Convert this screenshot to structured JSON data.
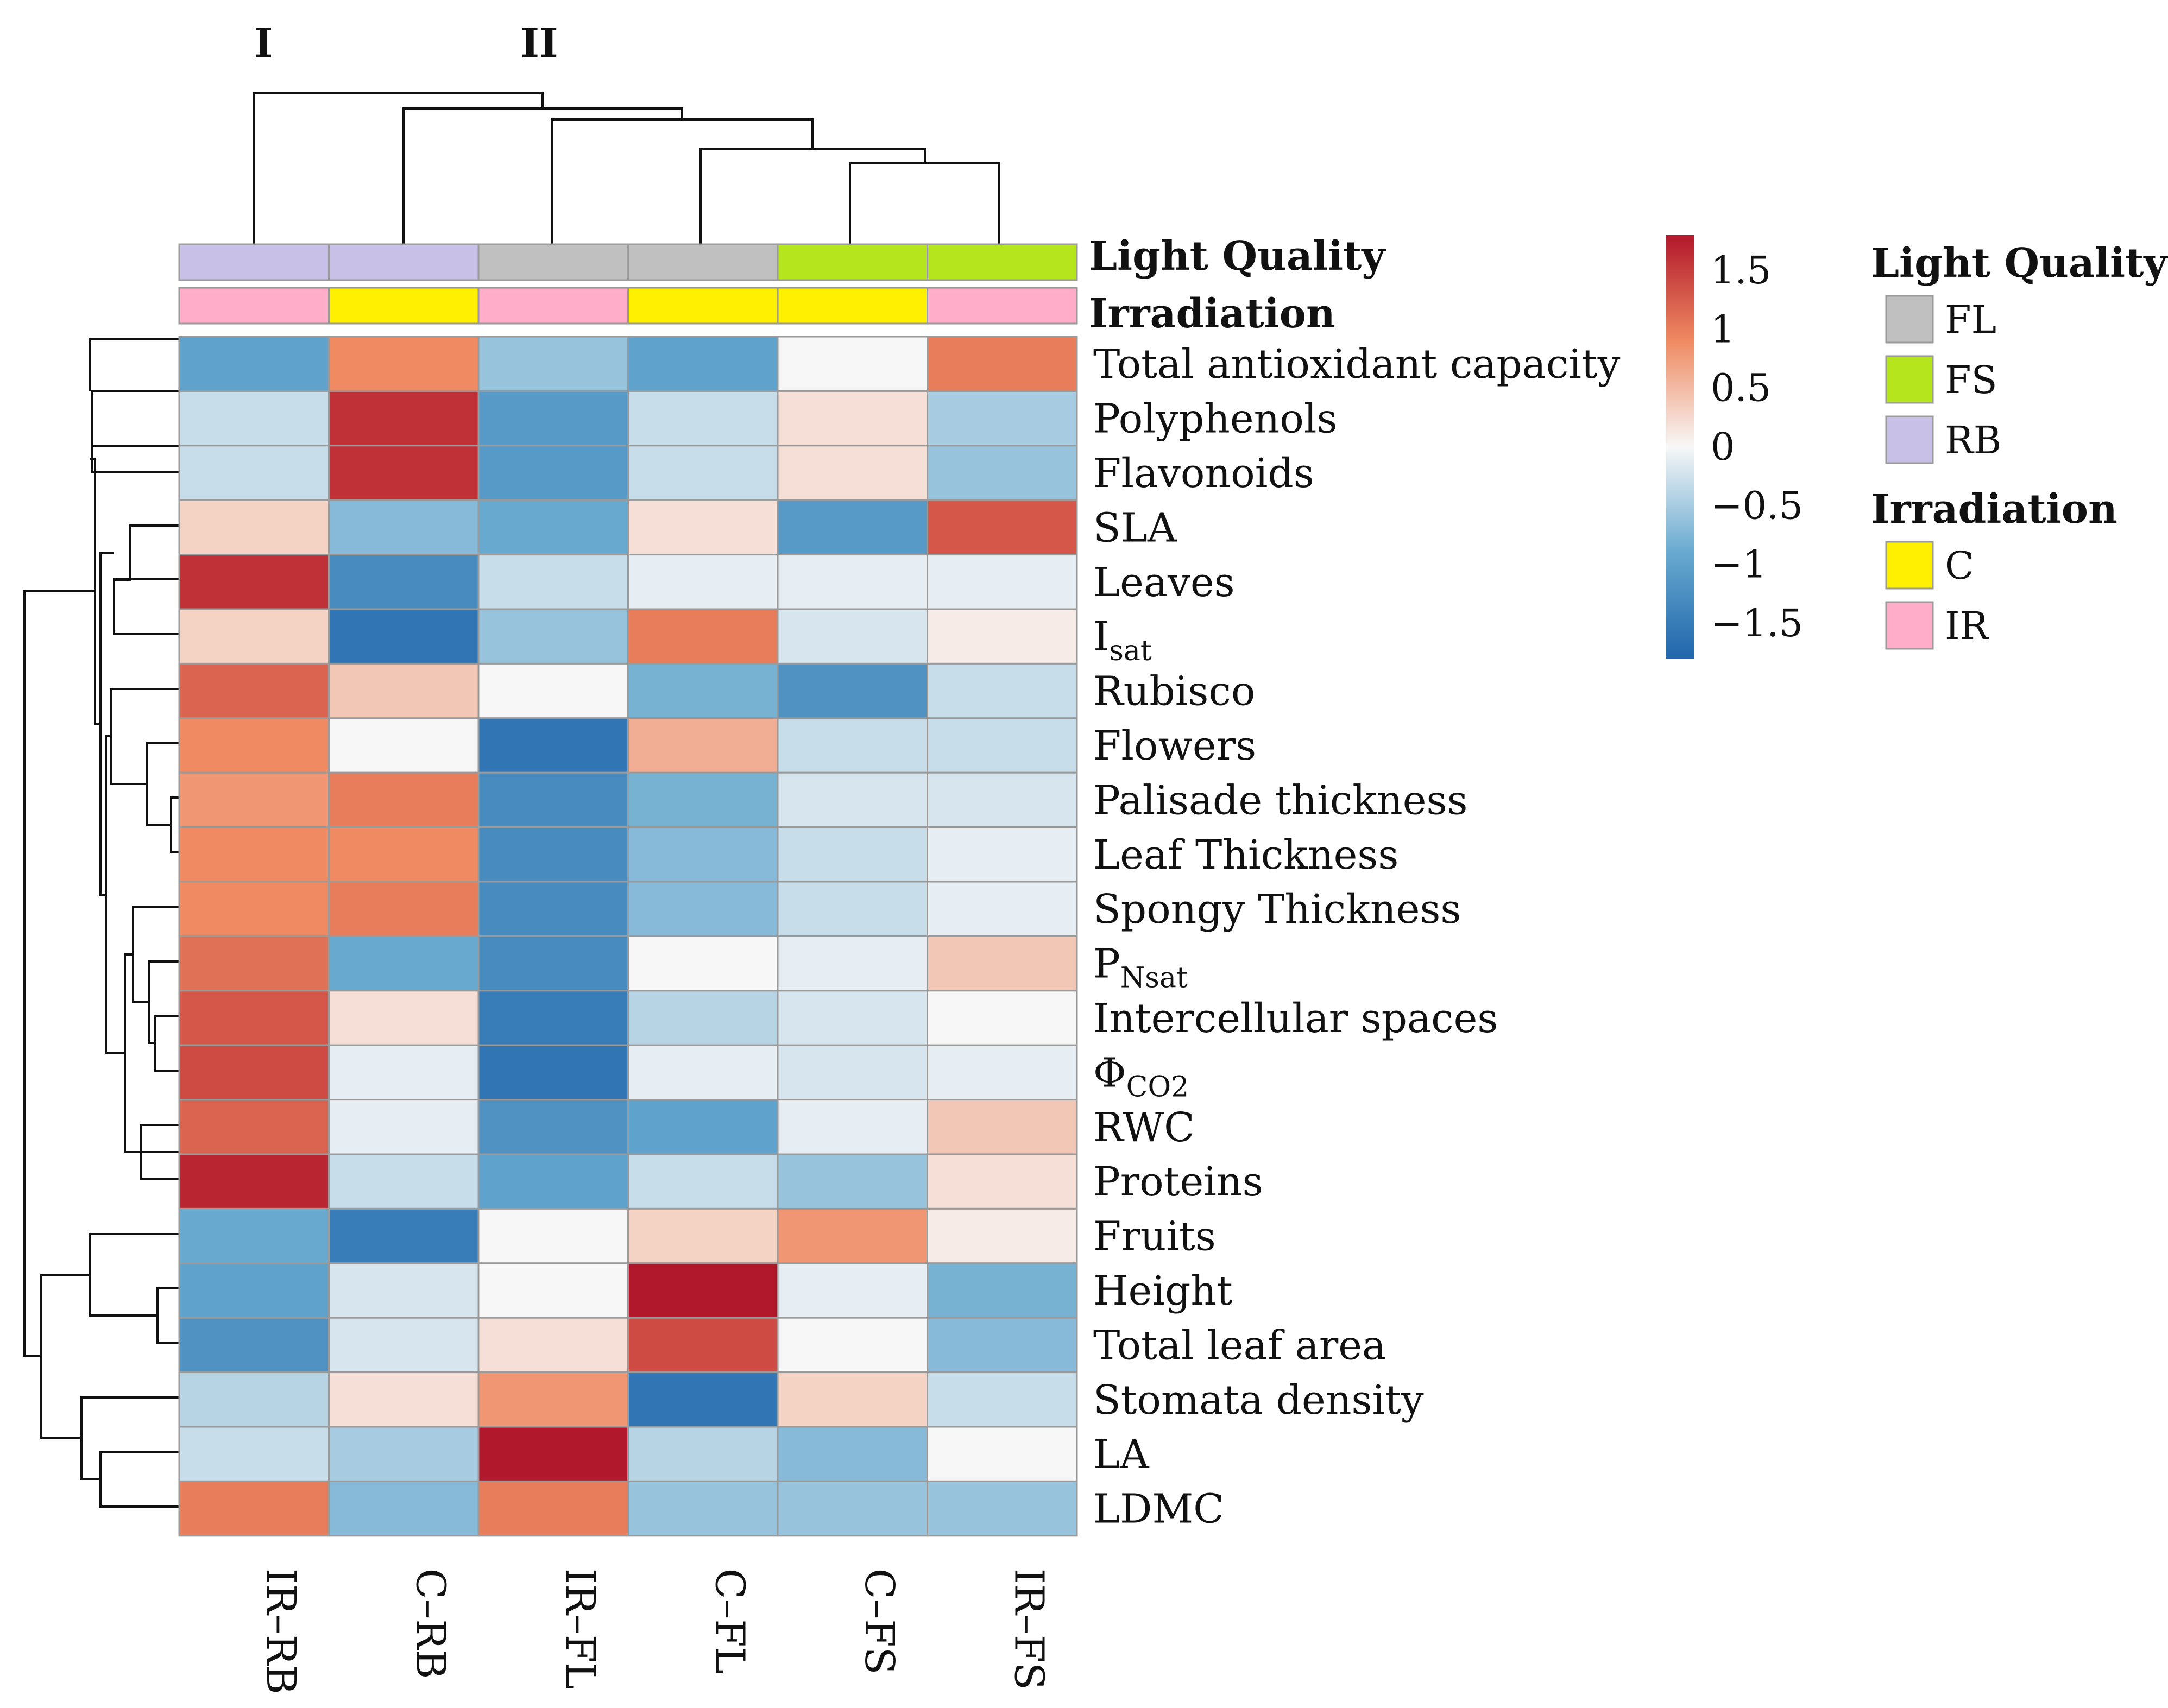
{
  "chart_data": {
    "type": "heatmap",
    "title": "",
    "columns": [
      "IR–RB",
      "C–RB",
      "IR–FL",
      "C–FL",
      "C–FS",
      "IR–FS"
    ],
    "rows": [
      {
        "label": "Total antioxidant capacity"
      },
      {
        "label": "Polyphenols"
      },
      {
        "label": "Flavonoids"
      },
      {
        "label": "SLA"
      },
      {
        "label": "Leaves"
      },
      {
        "label": "I",
        "sub": "sat"
      },
      {
        "label": "Rubisco"
      },
      {
        "label": "Flowers"
      },
      {
        "label": "Palisade thickness"
      },
      {
        "label": "Leaf Thickness"
      },
      {
        "label": "Spongy Thickness"
      },
      {
        "label": "P",
        "sub": "Nsat"
      },
      {
        "label": "Intercellular spaces"
      },
      {
        "label": "Φ",
        "sub": "CO2"
      },
      {
        "label": "RWC"
      },
      {
        "label": "Proteins"
      },
      {
        "label": "Fruits"
      },
      {
        "label": "Height"
      },
      {
        "label": "Total leaf area"
      },
      {
        "label": "Stomata density"
      },
      {
        "label": "LA"
      },
      {
        "label": "LDMC"
      }
    ],
    "values": [
      [
        -1.0,
        0.9,
        -0.6,
        -1.0,
        0.0,
        1.0
      ],
      [
        -0.3,
        1.6,
        -1.1,
        -0.3,
        0.2,
        -0.5
      ],
      [
        -0.3,
        1.6,
        -1.1,
        -0.3,
        0.2,
        -0.6
      ],
      [
        0.3,
        -0.7,
        -0.9,
        0.2,
        -1.1,
        1.3
      ],
      [
        1.6,
        -1.3,
        -0.3,
        -0.1,
        -0.1,
        -0.1
      ],
      [
        0.3,
        -1.6,
        -0.6,
        1.0,
        -0.2,
        0.1
      ],
      [
        1.2,
        0.4,
        0.0,
        -0.8,
        -1.2,
        -0.3
      ],
      [
        0.9,
        0.0,
        -1.6,
        0.6,
        -0.3,
        -0.3
      ],
      [
        0.8,
        1.0,
        -1.3,
        -0.8,
        -0.2,
        -0.2
      ],
      [
        0.9,
        0.9,
        -1.3,
        -0.7,
        -0.3,
        -0.1
      ],
      [
        0.9,
        1.0,
        -1.3,
        -0.7,
        -0.3,
        -0.1
      ],
      [
        1.1,
        -0.9,
        -1.3,
        0.0,
        -0.1,
        0.4
      ],
      [
        1.3,
        0.2,
        -1.5,
        -0.4,
        -0.2,
        0.0
      ],
      [
        1.4,
        -0.1,
        -1.6,
        -0.1,
        -0.2,
        -0.1
      ],
      [
        1.2,
        -0.1,
        -1.2,
        -1.0,
        -0.1,
        0.4
      ],
      [
        1.7,
        -0.3,
        -1.0,
        -0.3,
        -0.6,
        0.2
      ],
      [
        -0.9,
        -1.5,
        0.0,
        0.3,
        0.8,
        0.1
      ],
      [
        -1.0,
        -0.2,
        0.0,
        1.8,
        -0.1,
        -0.8
      ],
      [
        -1.2,
        -0.2,
        0.2,
        1.4,
        0.0,
        -0.7
      ],
      [
        -0.4,
        0.2,
        0.8,
        -1.6,
        0.3,
        -0.3
      ],
      [
        -0.3,
        -0.5,
        1.8,
        -0.4,
        -0.7,
        0.0
      ],
      [
        1.0,
        -0.7,
        1.0,
        -0.6,
        -0.6,
        -0.6
      ]
    ],
    "value_range": [
      -1.8,
      1.8
    ],
    "color_scale": {
      "low": "#2166ac",
      "mid": "#f7f7f7",
      "high": "#b2182b"
    },
    "colorbar_ticks": [
      {
        "value": 1.5,
        "label": "1.5"
      },
      {
        "value": 1,
        "label": "1"
      },
      {
        "value": 0.5,
        "label": "0.5"
      },
      {
        "value": 0,
        "label": "0"
      },
      {
        "value": -0.5,
        "label": "−0.5"
      },
      {
        "value": -1,
        "label": "−1"
      },
      {
        "value": -1.5,
        "label": "−1.5"
      }
    ],
    "cluster_labels": [
      "I",
      "II"
    ],
    "annotations": [
      {
        "name": "Light Quality",
        "values": [
          "RB",
          "RB",
          "FL",
          "FL",
          "FS",
          "FS"
        ]
      },
      {
        "name": "Irradiation",
        "values": [
          "IR",
          "C",
          "IR",
          "C",
          "C",
          "IR"
        ]
      }
    ],
    "legend": [
      {
        "title": "Light Quality",
        "items": [
          {
            "label": "FL",
            "color": "#c0c0c0"
          },
          {
            "label": "FS",
            "color": "#b5e61d"
          },
          {
            "label": "RB",
            "color": "#c8c0e6"
          }
        ]
      },
      {
        "title": "Irradiation",
        "items": [
          {
            "label": "C",
            "color": "#ffef00"
          },
          {
            "label": "IR",
            "color": "#ffadc9"
          }
        ]
      }
    ]
  }
}
